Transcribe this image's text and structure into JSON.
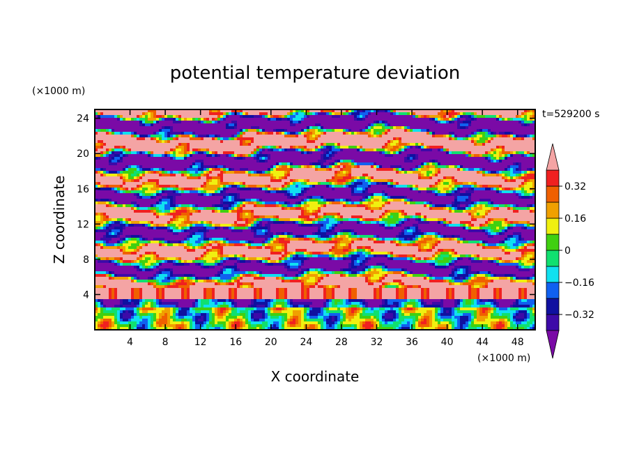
{
  "chart_data": {
    "type": "heatmap",
    "title": "potential temperature deviation",
    "time_label": "t=529200 s",
    "xlabel": "X coordinate",
    "ylabel": "Z coordinate",
    "x_unit": "(×1000 m)",
    "y_unit": "(×1000 m)",
    "xlim": [
      0,
      50
    ],
    "ylim": [
      0,
      25
    ],
    "x_ticks": [
      4,
      8,
      12,
      16,
      20,
      24,
      28,
      32,
      36,
      40,
      44,
      48
    ],
    "y_ticks": [
      4,
      8,
      12,
      16,
      20,
      24
    ],
    "colorbar": {
      "levels": [
        -0.4,
        -0.32,
        -0.24,
        -0.16,
        -0.08,
        0,
        0.08,
        0.16,
        0.24,
        0.32,
        0.4
      ],
      "labels": [
        "0.32",
        "0.16",
        "0",
        "−0.16",
        "−0.32"
      ],
      "label_values": [
        0.32,
        0.16,
        0,
        -0.16,
        -0.32
      ],
      "colors": [
        "#7a0aa6",
        "#3d0aa8",
        "#1010a0",
        "#1060f0",
        "#10e0f0",
        "#10e070",
        "#40d010",
        "#f0f010",
        "#f0a000",
        "#f06000",
        "#f02020",
        "#f4a4a4"
      ]
    },
    "layers": [
      {
        "z": [
          23.5,
          25
        ],
        "description": ""
      },
      {
        "z": [
          0,
          4
        ],
        "description": ""
      }
    ]
  }
}
